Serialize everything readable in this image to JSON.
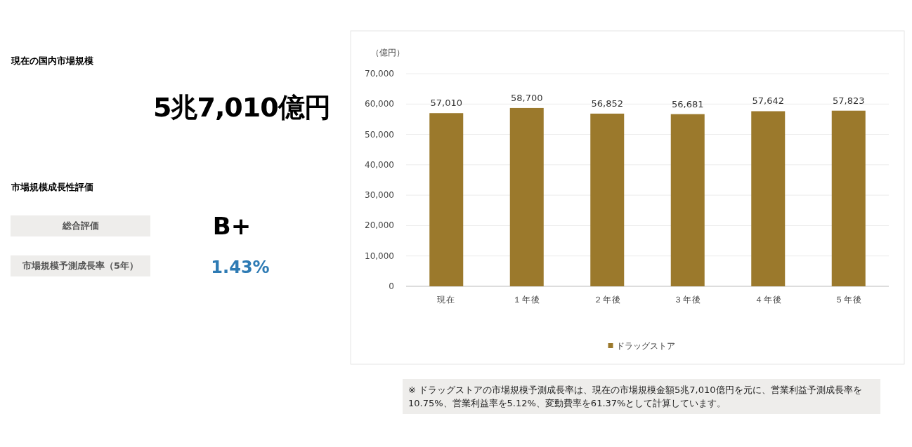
{
  "chart_data": [
    {
      "type": "other",
      "title": "現在の国内市場規模",
      "annotations": [
        "5兆7,010億円",
        "市場規模成長性評価",
        "総合評価",
        "B+",
        "市場規模予測成長率（5年）",
        "1.43%"
      ]
    },
    {
      "type": "bar",
      "ylabel": "（億円）",
      "categories": [
        "現在",
        "１年後",
        "２年後",
        "３年後",
        "４年後",
        "５年後"
      ],
      "series": [
        {
          "name": "ドラッグストア",
          "color": "#9b792c",
          "values": [
            57010,
            58700,
            56852,
            56681,
            57642,
            57823
          ],
          "value_labels": [
            "57,010",
            "58,700",
            "56,852",
            "56,681",
            "57,642",
            "57,823"
          ]
        }
      ],
      "ylim": [
        0,
        70000
      ],
      "yticks": [
        {
          "value": 0,
          "label": "0"
        },
        {
          "value": 10000,
          "label": "10,000"
        },
        {
          "value": 20000,
          "label": "20,000"
        },
        {
          "value": 30000,
          "label": "30,000"
        },
        {
          "value": 40000,
          "label": "40,000"
        },
        {
          "value": 50000,
          "label": "50,000"
        },
        {
          "value": 60000,
          "label": "60,000"
        },
        {
          "value": 70000,
          "label": "70,000"
        }
      ],
      "grid": "y",
      "legend": "bottom",
      "annotations": [
        "※ ドラッグストアの市場規模予測成長率は、現在の市場規模金額5兆7,010億円を元に、営業利益予測成長率を10.75%、営業利益率を5.12%、変動費率を61.37%として計算しています。"
      ]
    }
  ]
}
